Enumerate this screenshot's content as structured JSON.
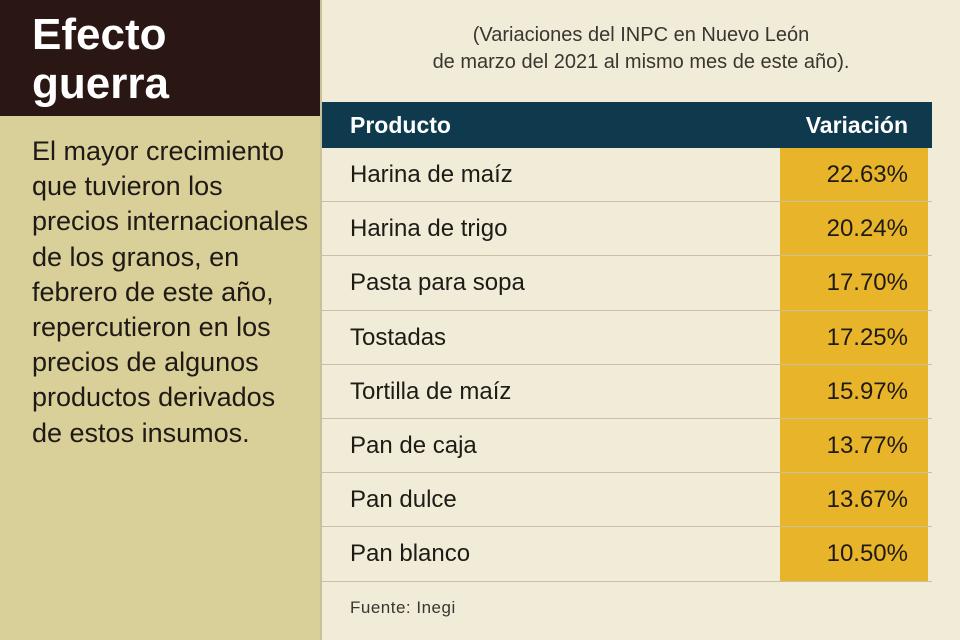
{
  "title": "Efecto guerra",
  "intro": "El mayor crecimiento que tuvieron los precios internacionales de los granos, en febrero de este año, repercutieron en los precios de algunos productos derivados de estos insumos.",
  "subtitle_line1": "(Variaciones del INPC en Nuevo León",
  "subtitle_line2": "de marzo del 2021 al mismo mes de este año).",
  "table": {
    "headers": {
      "product": "Producto",
      "variation": "Variación"
    },
    "rows": [
      {
        "product": "Harina de maíz",
        "variation": "22.63%"
      },
      {
        "product": "Harina de trigo",
        "variation": "20.24%"
      },
      {
        "product": "Pasta para sopa",
        "variation": "17.70%"
      },
      {
        "product": "Tostadas",
        "variation": "17.25%"
      },
      {
        "product": "Tortilla de maíz",
        "variation": "15.97%"
      },
      {
        "product": "Pan de caja",
        "variation": "13.77%"
      },
      {
        "product": "Pan dulce",
        "variation": "13.67%"
      },
      {
        "product": "Pan blanco",
        "variation": "10.50%"
      }
    ]
  },
  "source": "Fuente: Inegi",
  "colors": {
    "title_bg": "#2a1612",
    "sidebar_bg": "#d9cf98",
    "header_bg": "#0f3a4d",
    "highlight": "#e8b52a",
    "page_bg": "#f1ecd7"
  }
}
